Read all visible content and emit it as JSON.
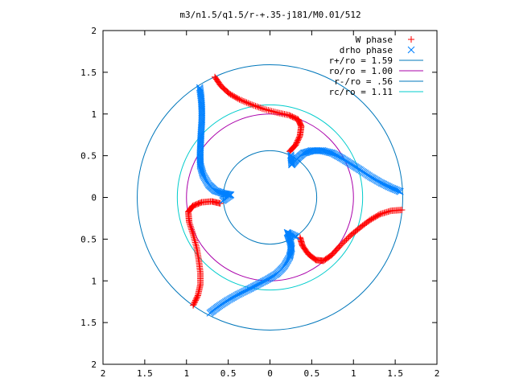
{
  "chart_data": {
    "type": "scatter",
    "title": "m3/n1.5/q1.5/r-+.35-j181/M0.01/512",
    "xlim": [
      -2,
      2
    ],
    "ylim": [
      -2,
      2
    ],
    "x_tick_labels": [
      "2",
      "1.5",
      "1",
      "0.5",
      "0",
      "0.5",
      "1",
      "1.5",
      "2"
    ],
    "y_tick_labels": [
      "2",
      "1.5",
      "1",
      "0.5",
      "0",
      "0.5",
      "1",
      "1.5",
      "2"
    ],
    "x_ticks": [
      -2,
      -1.5,
      -1,
      -0.5,
      0,
      0.5,
      1,
      1.5,
      2
    ],
    "y_ticks": [
      -2,
      -1.5,
      -1,
      -0.5,
      0,
      0.5,
      1,
      1.5,
      2
    ],
    "grid": false,
    "legend_position": "top-right",
    "series": [
      {
        "name": "W phase",
        "kind": "points",
        "marker": "+",
        "color": "#ff0000",
        "symmetry": 3,
        "points": [
          [
            1.58,
            -0.15
          ],
          [
            1.45,
            -0.16
          ],
          [
            1.32,
            -0.2
          ],
          [
            1.2,
            -0.27
          ],
          [
            1.08,
            -0.36
          ],
          [
            0.96,
            -0.46
          ],
          [
            0.84,
            -0.58
          ],
          [
            0.74,
            -0.69
          ],
          [
            0.64,
            -0.76
          ],
          [
            0.55,
            -0.75
          ],
          [
            0.46,
            -0.68
          ],
          [
            0.39,
            -0.58
          ],
          [
            0.36,
            -0.48
          ]
        ]
      },
      {
        "name": "drho phase",
        "kind": "points",
        "marker": "x",
        "color": "#0080ff",
        "symmetry": 3,
        "points": [
          [
            1.56,
            0.07
          ],
          [
            1.44,
            0.12
          ],
          [
            1.32,
            0.18
          ],
          [
            1.2,
            0.25
          ],
          [
            1.08,
            0.33
          ],
          [
            0.97,
            0.4
          ],
          [
            0.86,
            0.47
          ],
          [
            0.75,
            0.53
          ],
          [
            0.63,
            0.56
          ],
          [
            0.5,
            0.56
          ],
          [
            0.4,
            0.53
          ],
          [
            0.32,
            0.46
          ],
          [
            0.26,
            0.39
          ],
          [
            0.25,
            0.51
          ]
        ]
      },
      {
        "name": "r+/ro = 1.59",
        "kind": "circle",
        "radius": 1.59,
        "color": "#0077bb"
      },
      {
        "name": "ro/ro = 1.00",
        "kind": "circle",
        "radius": 1.0,
        "color": "#aa00aa"
      },
      {
        "name": "r-/ro = .56",
        "kind": "circle",
        "radius": 0.56,
        "color": "#0077bb"
      },
      {
        "name": "rc/ro = 1.11",
        "kind": "circle",
        "radius": 1.11,
        "color": "#00cccc"
      }
    ]
  }
}
